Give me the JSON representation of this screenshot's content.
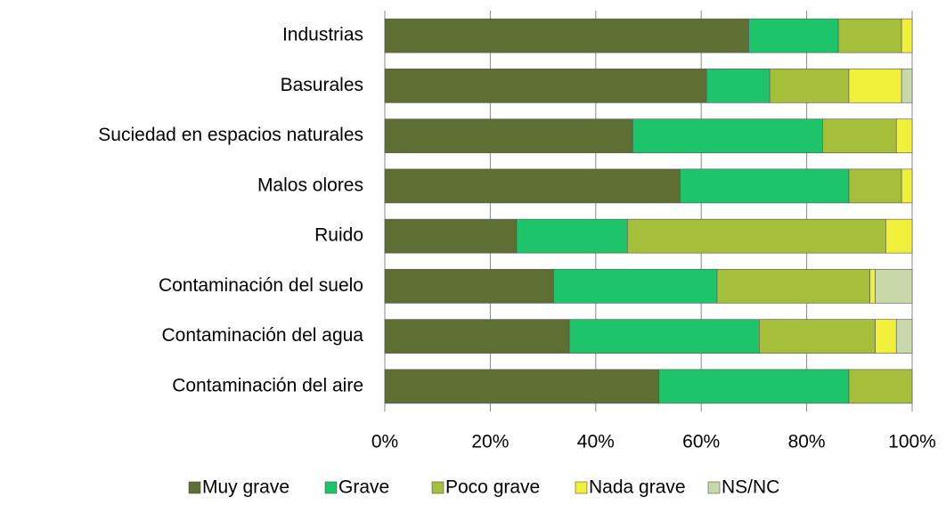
{
  "chart_data": {
    "type": "stacked_bar_horizontal",
    "categories": [
      "Industrias",
      "Basurales",
      "Suciedad en espacios naturales",
      "Malos olores",
      "Ruido",
      "Contaminación del suelo",
      "Contaminación del agua",
      "Contaminación del aire"
    ],
    "series": [
      {
        "name": "Muy grave",
        "color": "#5f6e32",
        "values": [
          69,
          61,
          47,
          56,
          25,
          32,
          35,
          52
        ]
      },
      {
        "name": "Grave",
        "color": "#1dc46a",
        "values": [
          17,
          12,
          36,
          32,
          21,
          31,
          36,
          36
        ]
      },
      {
        "name": "Poco grave",
        "color": "#a5bf3a",
        "values": [
          12,
          15,
          14,
          10,
          49,
          29,
          22,
          12
        ]
      },
      {
        "name": "Nada grave",
        "color": "#f0f03a",
        "values": [
          2,
          10,
          3,
          2,
          5,
          1,
          4,
          0
        ]
      },
      {
        "name": "NS/NC",
        "color": "#c8d8a8",
        "values": [
          0,
          2,
          0,
          0,
          0,
          7,
          3,
          0
        ]
      }
    ],
    "xlim": [
      0,
      100
    ],
    "xticks": [
      {
        "value": 0,
        "label": "0%"
      },
      {
        "value": 20,
        "label": "20%"
      },
      {
        "value": 40,
        "label": "40%"
      },
      {
        "value": 60,
        "label": "60%"
      },
      {
        "value": 80,
        "label": "80%"
      },
      {
        "value": 100,
        "label": "100%"
      }
    ],
    "grid": true
  }
}
